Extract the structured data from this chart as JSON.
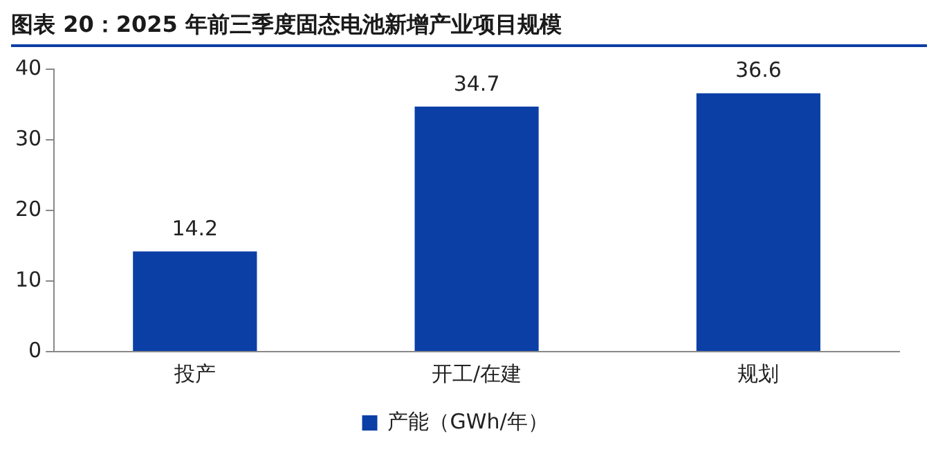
{
  "chart_data": {
    "type": "bar",
    "title": "图表 20：2025 年前三季度固态电池新增产业项目规模",
    "categories": [
      "投产",
      "开工/在建",
      "规划"
    ],
    "series": [
      {
        "name": "产能（GWh/年）",
        "color": "#0b3fa6",
        "values": [
          14.2,
          34.7,
          36.6
        ]
      }
    ],
    "ylim": [
      0,
      40
    ],
    "yticks": [
      0,
      10,
      20,
      30,
      40
    ],
    "grid": false,
    "legend": "bottom",
    "data_labels": true
  }
}
